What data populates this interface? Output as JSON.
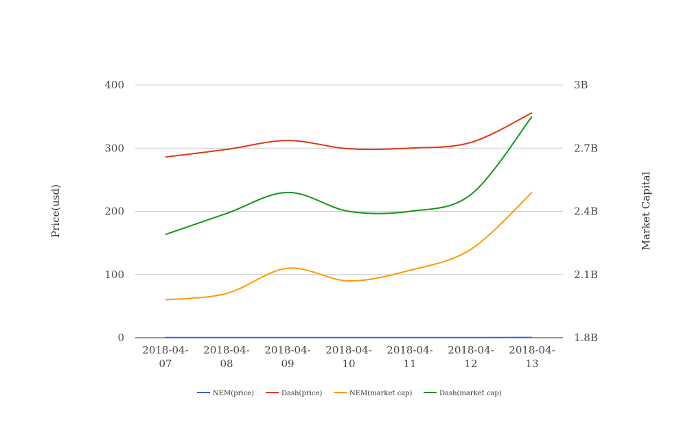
{
  "chart_data": {
    "type": "line",
    "x": [
      "2018-04-07",
      "2018-04-08",
      "2018-04-09",
      "2018-04-10",
      "2018-04-11",
      "2018-04-12",
      "2018-04-13"
    ],
    "x_tick_labels": [
      [
        "2018-04-",
        "07"
      ],
      [
        "2018-04-",
        "08"
      ],
      [
        "2018-04-",
        "09"
      ],
      [
        "2018-04-",
        "10"
      ],
      [
        "2018-04-",
        "11"
      ],
      [
        "2018-04-",
        "12"
      ],
      [
        "2018-04-",
        "13"
      ]
    ],
    "ylabel_left": "Price(usd)",
    "ylabel_right": "Market Capital",
    "ylim_left": [
      0,
      400
    ],
    "ylim_right": [
      1800000000,
      3000000000
    ],
    "yticks_left": [
      "0",
      "100",
      "200",
      "300",
      "400"
    ],
    "yticks_right": [
      "1.8B",
      "2.1B",
      "2.4B",
      "2.7B",
      "3B"
    ],
    "grid": true,
    "legend_position": "bottom",
    "series": [
      {
        "name": "NEM(price)",
        "axis": "left",
        "color": "#3366cc",
        "values": [
          0.24,
          0.25,
          0.29,
          0.27,
          0.29,
          0.31,
          0.39
        ]
      },
      {
        "name": "Dash(price)",
        "axis": "left",
        "color": "#dc3912",
        "values": [
          286,
          298,
          312,
          299,
          300,
          309,
          356
        ]
      },
      {
        "name": "NEM(market cap)",
        "axis": "right",
        "color": "#ff9900",
        "values": [
          1980000000,
          2010000000,
          2130000000,
          2070000000,
          2120000000,
          2220000000,
          2490000000
        ]
      },
      {
        "name": "Dash(market cap)",
        "axis": "right",
        "color": "#109618",
        "values": [
          2290000000,
          2390000000,
          2490000000,
          2400000000,
          2400000000,
          2480000000,
          2850000000
        ]
      }
    ]
  }
}
